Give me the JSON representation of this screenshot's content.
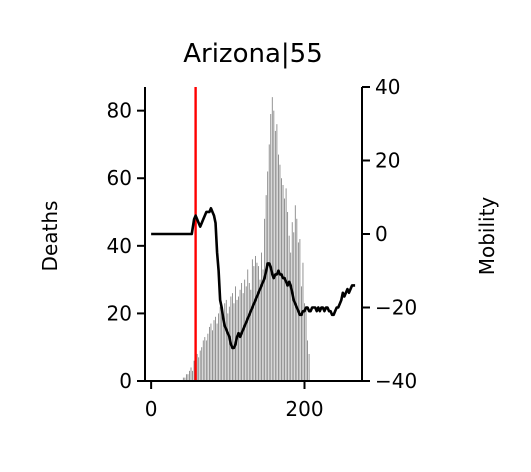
{
  "chart_data": {
    "type": "bar",
    "title": "Arizona|55",
    "xlabel": "",
    "ylabel": "Deaths",
    "y2label": "Mobility",
    "xlim": [
      -8,
      275
    ],
    "ylim": [
      0,
      87
    ],
    "y2lim": [
      -40,
      40
    ],
    "xticks": [
      0,
      200
    ],
    "yticks": [
      0,
      20,
      40,
      60,
      80
    ],
    "y2ticks": [
      -40,
      -20,
      0,
      20,
      40
    ],
    "grid": false,
    "vline_x": 58,
    "vline_color": "#ff0000",
    "bar_color": "#808080",
    "line_color": "#000000",
    "series": [
      {
        "kind": "bar",
        "axis": "left",
        "x": [
          40,
          42,
          44,
          46,
          48,
          50,
          52,
          54,
          56,
          58,
          60,
          62,
          64,
          66,
          68,
          70,
          72,
          74,
          76,
          78,
          80,
          82,
          84,
          86,
          88,
          90,
          92,
          94,
          96,
          98,
          100,
          102,
          104,
          106,
          108,
          110,
          112,
          114,
          116,
          118,
          120,
          122,
          124,
          126,
          128,
          130,
          132,
          134,
          136,
          138,
          140,
          142,
          144,
          146,
          148,
          150,
          152,
          154,
          156,
          158,
          160,
          162,
          164,
          166,
          168,
          170,
          172,
          174,
          176,
          178,
          180,
          182,
          184,
          186,
          188,
          190,
          192,
          194,
          196,
          198,
          200,
          202,
          204,
          206
        ],
        "values": [
          0,
          1,
          1,
          2,
          2,
          3,
          4,
          3,
          6,
          5,
          8,
          7,
          9,
          10,
          12,
          13,
          12,
          14,
          16,
          17,
          15,
          18,
          19,
          17,
          20,
          22,
          21,
          19,
          23,
          24,
          20,
          22,
          25,
          26,
          23,
          28,
          24,
          25,
          27,
          29,
          26,
          30,
          28,
          33,
          29,
          27,
          36,
          34,
          37,
          35,
          34,
          30,
          38,
          33,
          48,
          55,
          62,
          70,
          79,
          84,
          80,
          74,
          76,
          67,
          64,
          60,
          58,
          54,
          57,
          50,
          43,
          38,
          47,
          44,
          52,
          48,
          41,
          42,
          28,
          35,
          23,
          21,
          12,
          8
        ]
      },
      {
        "kind": "line",
        "axis": "right",
        "x": [
          0,
          52,
          53,
          56,
          58,
          60,
          62,
          64,
          66,
          68,
          70,
          72,
          74,
          76,
          78,
          80,
          82,
          84,
          86,
          88,
          90,
          92,
          94,
          96,
          98,
          100,
          102,
          104,
          106,
          108,
          110,
          112,
          114,
          116,
          118,
          120,
          122,
          124,
          126,
          128,
          130,
          132,
          134,
          136,
          138,
          140,
          142,
          144,
          146,
          148,
          150,
          152,
          154,
          156,
          158,
          160,
          162,
          164,
          166,
          168,
          170,
          172,
          174,
          176,
          178,
          180,
          182,
          184,
          186,
          188,
          190,
          192,
          194,
          196,
          198,
          200,
          202,
          204,
          206,
          208,
          210,
          212,
          214,
          216,
          218,
          220,
          222,
          224,
          226,
          228,
          230,
          232,
          234,
          236,
          238,
          240,
          242,
          244,
          246,
          248,
          250,
          252,
          254,
          256,
          258,
          260,
          262,
          264,
          266
        ],
        "values": [
          0,
          0,
          0,
          4,
          5,
          4,
          3,
          2,
          3,
          4,
          5,
          6,
          6,
          6,
          7,
          6,
          5,
          3,
          -5,
          -10,
          -18,
          -20,
          -23,
          -25,
          -26,
          -27,
          -28,
          -30,
          -31,
          -31,
          -30,
          -28,
          -27,
          -28,
          -27,
          -26,
          -25,
          -24,
          -23,
          -22,
          -21,
          -20,
          -19,
          -18,
          -17,
          -16,
          -15,
          -14,
          -13,
          -12,
          -10,
          -8,
          -8,
          -9,
          -11,
          -12,
          -11,
          -11,
          -10,
          -11,
          -11,
          -12,
          -12,
          -13,
          -14,
          -13,
          -14,
          -16,
          -18,
          -19,
          -20,
          -21,
          -22,
          -22,
          -21,
          -21,
          -20,
          -20,
          -21,
          -21,
          -20,
          -20,
          -20,
          -21,
          -20,
          -21,
          -20,
          -20,
          -21,
          -20,
          -20,
          -21,
          -21,
          -22,
          -22,
          -21,
          -20,
          -20,
          -19,
          -18,
          -16,
          -17,
          -16,
          -15,
          -16,
          -15,
          -14,
          -14,
          -14
        ]
      }
    ]
  }
}
